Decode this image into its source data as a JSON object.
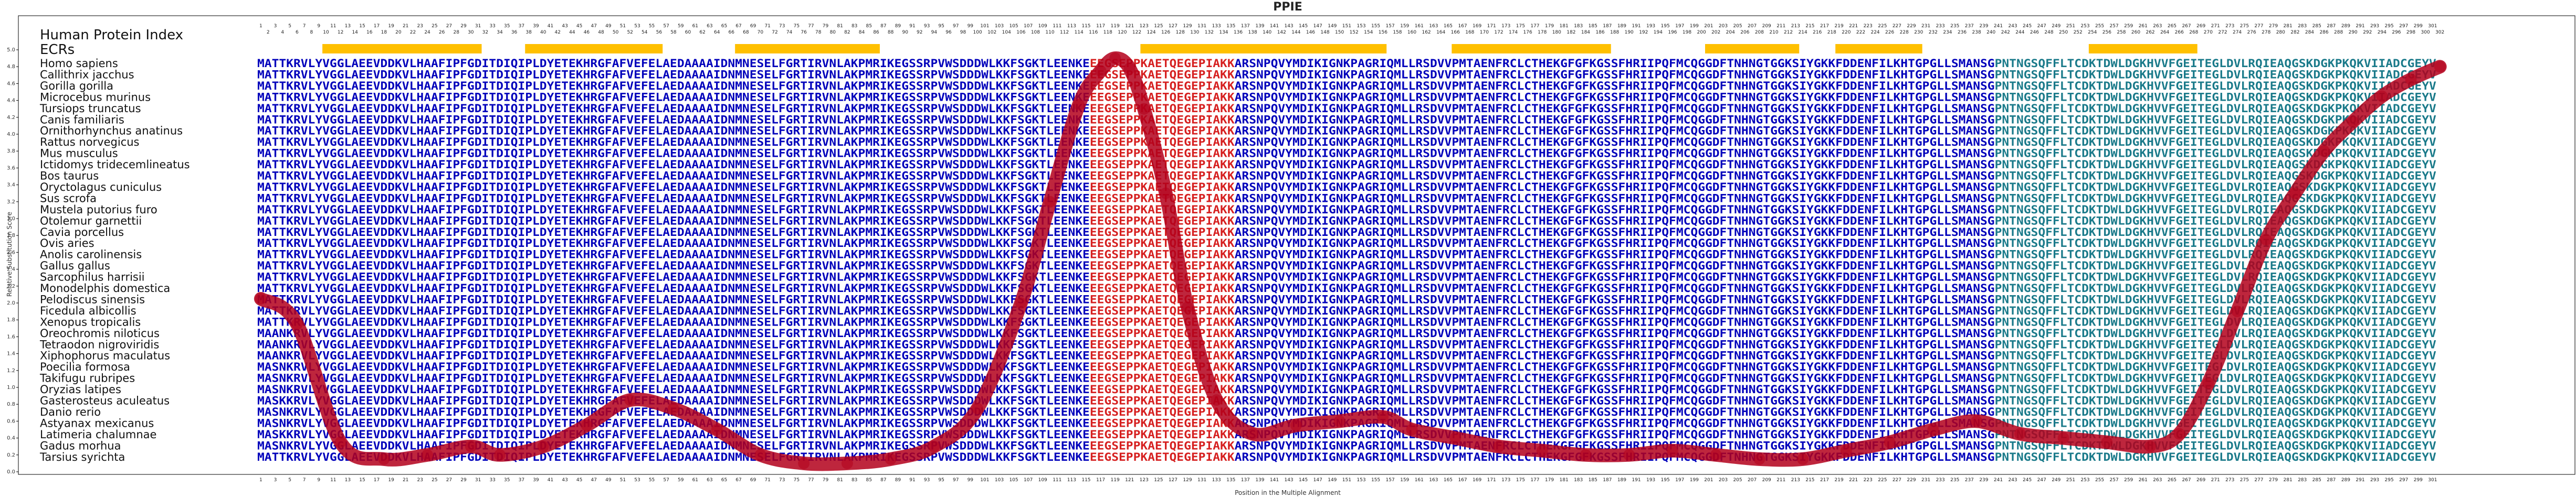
{
  "chart_data": {
    "type": "line",
    "title": "PPIE",
    "xlabel": "Position in the Multiple Alignment",
    "ylabel": "Relative Substitution Score",
    "xlim": [
      1,
      302
    ],
    "ylim": [
      0,
      5
    ],
    "yticks": [
      "0.0",
      "0.2",
      "0.4",
      "0.6",
      "0.8",
      "1.0",
      "1.2",
      "1.4",
      "1.6",
      "1.8",
      "2.0",
      "2.2",
      "2.4",
      "2.6",
      "2.8",
      "3.0",
      "3.2",
      "3.4",
      "3.6",
      "3.8",
      "4.0",
      "4.2",
      "4.4",
      "4.6",
      "4.8",
      "5.0"
    ],
    "grid": false,
    "series": [
      {
        "x": [
          1,
          6,
          12,
          18,
          24,
          30,
          34,
          40,
          46,
          52,
          58,
          64,
          70,
          76,
          82,
          88,
          94,
          100,
          106,
          110,
          114,
          117,
          119,
          121,
          123,
          126,
          129,
          133,
          138,
          144,
          150,
          156,
          160,
          166,
          172,
          178,
          184,
          190,
          196,
          202,
          208,
          214,
          220,
          226,
          232,
          238,
          244,
          250,
          256,
          262,
          266,
          270,
          274,
          278,
          282,
          286,
          290,
          294,
          298,
          302
        ],
        "values": [
          2.05,
          1.75,
          0.35,
          0.15,
          0.2,
          0.3,
          0.2,
          0.3,
          0.55,
          0.85,
          0.75,
          0.5,
          0.2,
          0.1,
          0.1,
          0.15,
          0.3,
          0.75,
          2.0,
          3.2,
          4.35,
          4.75,
          4.9,
          4.78,
          4.3,
          3.3,
          1.95,
          0.85,
          0.45,
          0.55,
          0.6,
          0.65,
          0.5,
          0.4,
          0.3,
          0.25,
          0.2,
          0.2,
          0.25,
          0.2,
          0.15,
          0.15,
          0.25,
          0.35,
          0.5,
          0.6,
          0.45,
          0.4,
          0.35,
          0.3,
          0.45,
          1.05,
          1.9,
          2.75,
          3.3,
          3.8,
          4.15,
          4.45,
          4.65,
          4.8
        ]
      }
    ]
  },
  "header": {
    "left_label": "Human Protein Index",
    "ecr_label": "ECRs",
    "ecr_segments": [
      [
        10,
        31
      ],
      [
        38,
        56
      ],
      [
        67,
        86
      ],
      [
        123,
        156
      ],
      [
        166,
        187
      ],
      [
        201,
        213
      ],
      [
        219,
        230
      ],
      [
        254,
        268
      ]
    ]
  },
  "species": [
    "Homo sapiens",
    "Callithrix jacchus",
    "Gorilla gorilla",
    "Microcebus murinus",
    "Tursiops truncatus",
    "Canis familiaris",
    "Ornithorhynchus anatinus",
    "Rattus norvegicus",
    "Mus musculus",
    "Ictidomys tridecemlineatus",
    "Bos taurus",
    "Oryctolagus cuniculus",
    "Sus scrofa",
    "Mustela putorius furo",
    "Otolemur garnettii",
    "Cavia porcellus",
    "Ovis aries",
    "Anolis carolinensis",
    "Gallus gallus",
    "Sarcophilus harrisii",
    "Monodelphis domestica",
    "Pelodiscus sinensis",
    "Ficedula albicollis",
    "Xenopus tropicalis",
    "Oreochromis niloticus",
    "Tetraodon nigroviridis",
    "Xiphophorus maculatus",
    "Poecilia formosa",
    "Takifugu rubripes",
    "Oryzias latipes",
    "Gasterosteus aculeatus",
    "Danio rerio",
    "Astyanax mexicanus",
    "Latimeria chalumnae",
    "Gadus morhua",
    "Tarsius syrichta"
  ],
  "sequences": [
    "MATTKRVLYVGGLAEEVDDKVLHAAFIPFGDITDIQIPLDYETEKHRGFAFVEFELAEDAAAAIDNMNESELFGRTIRVNLAKPMRIKEGSSRPVWSDDDWLKKFSGKTLEENKEEEGSEPPKAETQEGEPIAKKARSNPQVYMDIKIGNKPAGRIQMLLRSDVVPMTAENFRCLCTHEKGFGFKGSSFHRIIPQFMCQGGDFTNHNGTGGKSIYGKKFDDENFILKHTGPGLLSMANSGPNTNGSQFFLTCDKTDWLDGKHVVFGEITEGLDVLRQIEAQGSKDGKPKQKVIIADCGEYV",
    "MATTKRVLYVGGLAEEVDDKVLHAAFIPFGDITDIQIPLDYETEKHRGFAFVEFELAEDAAAAIDNMNESELFGRTIRVNLAKPMRIKEGSSRPVWSDDDWLKKFSGKTLEENKEEEGSEPPKAETQEGEPIAKKARSNPQVYMDIKIGNKPAGRIQMLLRSDVVPMTAENFRCLCTHEKGFGFKGSSFHRIIPQFMCQGGDFTNHNGTGGKSIYGKKFDDENFILKHTGPGLLSMANSGPNTNGSQFFLTCDKTDWLDGKHVVFGEITEGLDVLRQIEAQGSKDGKPKQKVIIADCGEYV",
    "MATTKRVLYVGGLAEEVDDKVLHAAFIPFGDITDIQIPLDYETEKHRGFAFVEFELAEDAAAAIDNMNESELFGRTIRVNLAKPMRIKEGSSRPVWSDDDWLKKFSGKTLEENKEEEGSEPPKAETQEGEPIAKKARSNPQVYMDIKIGNKPAGRIQMLLRSDVVPMTAENFRCLCTHEKGFGFKGSSFHRIIPQFMCQGGDFTNHNGTGGKSIYGKKFDDENFILKHTGPGLLSMANSGPNTNGSQFFLTCDKTDWLDGKHVVFGEITEGLDVLRQIEAQGSKDGKPKQKVIIADCGEYV",
    "MATTKRVLYVGGLAEEVDDKVLHAAFIPFGDITDIQIPLDYETEKHRGFAFVEFELAEDAAAAIDNMNESELFGRTIRVNLAKPMRIKEGSSRPVWSDDDWLKKFSGKTLEENKEEEGSEPPKAETQEGEPIAKKARSNPQVYMDIKIGNKPAGRIQMLLRSDVVPMTAENFRCLCTHEKGFGFKGSSFHRIIPQFMCQGGDFTNHNGTGGKSIYGKKFDDENFILKHTGPGLLSMANSGPNTNGSQFFLTCDKTDWLDGKHVVFGEITEGLDVLRQIEAQGSKDGKPKQKVIIADCGEYV",
    "MATTKRVLYVGGLAEEVDDKVLHAAFIPFGDITDIQIPLDYETEKHRGFAFVEFELAEDAAAAIDNMNESELFGRTIRVNLAKPMRIKEGSSRPVWSDDDWLKKFSGKTLEENKEEEGSEPPKAETQEGEPIAKKARSNPQVYMDIKIGNKPAGRIQMLLRSDVVPMTAENFRCLCTHEKGFGFKGSSFHRIIPQFMCQGGDFTNHNGTGGKSIYGKKFDDENFILKHTGPGLLSMANSGPNTNGSQFFLTCDKTDWLDGKHVVFGEITEGLDVLRQIEAQGSKDGKPKQKVIIADCGEYV",
    "MATTKRVLYVGGLAEEVDDKVLHAAFIPFGDITDIQIPLDYETEKHRGFAFVEFELAEDAAAAIDNMNESELFGRTIRVNLAKPMRIKEGSSRPVWSDDDWLKKFSGKTLEENKEEEGSEPPKAETQEGEPIAKKARSNPQVYMDIKIGNKPAGRIQMLLRSDVVPMTAENFRCLCTHEKGFGFKGSSFHRIIPQFMCQGGDFTNHNGTGGKSIYGKKFDDENFILKHTGPGLLSMANSGPNTNGSQFFLTCDKTDWLDGKHVVFGEITEGLDVLRQIEAQGSKDGKPKQKVIIADCGEYV",
    "MATTKRVLYVGGLAEEVDDKVLHAAFIPFGDITDIQIPLDYETEKHRGFAFVEFELAEDAAAAIDNMNESELFGRTIRVNLAKPMRIKEGSSRPVWSDDDWLKKFSGKTLEENKEEEGSEPPKAETQEGEPIAKKARSNPQVYMDIKIGNKPAGRIQMLLRSDVVPMTAENFRCLCTHEKGFGFKGSSFHRIIPQFMCQGGDFTNHNGTGGKSIYGKKFDDENFILKHTGPGLLSMANSGPNTNGSQFFLTCDKTDWLDGKHVVFGEITEGLDVLRQIEAQGSKDGKPKQKVIIADCGEYV",
    "MATTKRVLYVGGLAEEVDDKVLHAAFIPFGDITDIQIPLDYETEKHRGFAFVEFELAEDAAAAIDNMNESELFGRTIRVNLAKPMRIKEGSSRPVWSDDDWLKKFSGKTLEENKEEEGSEPPKAETQEGEPIAKKARSNPQVYMDIKIGNKPAGRIQMLLRSDVVPMTAENFRCLCTHEKGFGFKGSSFHRIIPQFMCQGGDFTNHNGTGGKSIYGKKFDDENFILKHTGPGLLSMANSGPNTNGSQFFLTCDKTDWLDGKHVVFGEITEGLDVLRQIEAQGSKDGKPKQKVIIADCGEYV",
    "MATTKRVLYVGGLAEEVDDKVLHAAFIPFGDITDIQIPLDYETEKHRGFAFVEFELAEDAAAAIDNMNESELFGRTIRVNLAKPMRIKEGSSRPVWSDDDWLKKFSGKTLEENKEEEGSEPPKAETQEGEPIAKKARSNPQVYMDIKIGNKPAGRIQMLLRSDVVPMTAENFRCLCTHEKGFGFKGSSFHRIIPQFMCQGGDFTNHNGTGGKSIYGKKFDDENFILKHTGPGLLSMANSGPNTNGSQFFLTCDKTDWLDGKHVVFGEITEGLDVLRQIEAQGSKDGKPKQKVIIADCGEYV",
    "MATTKRVLYVGGLAEEVDDKVLHAAFIPFGDITDIQIPLDYETEKHRGFAFVEFELAEDAAAAIDNMNESELFGRTIRVNLAKPMRIKEGSSRPVWSDDDWLKKFSGKTLEENKEEEGSEPPKAETQEGEPIAKKARSNPQVYMDIKIGNKPAGRIQMLLRSDVVPMTAENFRCLCTHEKGFGFKGSSFHRIIPQFMCQGGDFTNHNGTGGKSIYGKKFDDENFILKHTGPGLLSMANSGPNTNGSQFFLTCDKTDWLDGKHVVFGEITEGLDVLRQIEAQGSKDGKPKQKVIIADCGEYV",
    "MATTKRVLYVGGLAEEVDDKVLHAAFIPFGDITDIQIPLDYETEKHRGFAFVEFELAEDAAAAIDNMNESELFGRTIRVNLAKPMRIKEGSSRPVWSDDDWLKKFSGKTLEENKEEEGSEPPKAETQEGEPIAKKARSNPQVYMDIKIGNKPAGRIQMLLRSDVVPMTAENFRCLCTHEKGFGFKGSSFHRIIPQFMCQGGDFTNHNGTGGKSIYGKKFDDENFILKHTGPGLLSMANSGPNTNGSQFFLTCDKTDWLDGKHVVFGEITEGLDVLRQIEAQGSKDGKPKQKVIIADCGEYV",
    "MATTKRVLYVGGLAEEVDDKVLHAAFIPFGDITDIQIPLDYETEKHRGFAFVEFELAEDAAAAIDNMNESELFGRTIRVNLAKPMRIKEGSSRPVWSDDDWLKKFSGKTLEENKEEEGSEPPKAETQEGEPIAKKARSNPQVYMDIKIGNKPAGRIQMLLRSDVVPMTAENFRCLCTHEKGFGFKGSSFHRIIPQFMCQGGDFTNHNGTGGKSIYGKKFDDENFILKHTGPGLLSMANSGPNTNGSQFFLTCDKTDWLDGKHVVFGEITEGLDVLRQIEAQGSKDGKPKQKVIIADCGEYV",
    "MATTKRVLYVGGLAEEVDDKVLHAAFIPFGDITDIQIPLDYETEKHRGFAFVEFELAEDAAAAIDNMNESELFGRTIRVNLAKPMRIKEGSSRPVWSDDDWLKKFSGKTLEENKEEEGSEPPKAETQEGEPIAKKARSNPQVYMDIKIGNKPAGRIQMLLRSDVVPMTAENFRCLCTHEKGFGFKGSSFHRIIPQFMCQGGDFTNHNGTGGKSIYGKKFDDENFILKHTGPGLLSMANSGPNTNGSQFFLTCDKTDWLDGKHVVFGEITEGLDVLRQIEAQGSKDGKPKQKVIIADCGEYV",
    "MATTKRVLYVGGLAEEVDDKVLHAAFIPFGDITDIQIPLDYETEKHRGFAFVEFELAEDAAAAIDNMNESELFGRTIRVNLAKPMRIKEGSSRPVWSDDDWLKKFSGKTLEENKEEEGSEPPKAETQEGEPIAKKARSNPQVYMDIKIGNKPAGRIQMLLRSDVVPMTAENFRCLCTHEKGFGFKGSSFHRIIPQFMCQGGDFTNHNGTGGKSIYGKKFDDENFILKHTGPGLLSMANSGPNTNGSQFFLTCDKTDWLDGKHVVFGEITEGLDVLRQIEAQGSKDGKPKQKVIIADCGEYV",
    "MATTKRVLYVGGLAEEVDDKVLHAAFIPFGDITDIQIPLDYETEKHRGFAFVEFELAEDAAAAIDNMNESELFGRTIRVNLAKPMRIKEGSSRPVWSDDDWLKKFSGKTLEENKEEEGSEPPKAETQEGEPIAKKARSNPQVYMDIKIGNKPAGRIQMLLRSDVVPMTAENFRCLCTHEKGFGFKGSSFHRIIPQFMCQGGDFTNHNGTGGKSIYGKKFDDENFILKHTGPGLLSMANSGPNTNGSQFFLTCDKTDWLDGKHVVFGEITEGLDVLRQIEAQGSKDGKPKQKVIIADCGEYV",
    "MATTKRVLYVGGLAEEVDDKVLHAAFIPFGDITDIQIPLDYETEKHRGFAFVEFELAEDAAAAIDNMNESELFGRTIRVNLAKPMRIKEGSSRPVWSDDDWLKKFSGKTLEENKEEEGSEPPKAETQEGEPIAKKARSNPQVYMDIKIGNKPAGRIQMLLRSDVVPMTAENFRCLCTHEKGFGFKGSSFHRIIPQFMCQGGDFTNHNGTGGKSIYGKKFDDENFILKHTGPGLLSMANSGPNTNGSQFFLTCDKTDWLDGKHVVFGEITEGLDVLRQIEAQGSKDGKPKQKVIIADCGEYV",
    "MATTKRVLYVGGLAEEVDDKVLHAAFIPFGDITDIQIPLDYETEKHRGFAFVEFELAEDAAAAIDNMNESELFGRTIRVNLAKPMRIKEGSSRPVWSDDDWLKKFSGKTLEENKEEEGSEPPKAETQEGEPIAKKARSNPQVYMDIKIGNKPAGRIQMLLRSDVVPMTAENFRCLCTHEKGFGFKGSSFHRIIPQFMCQGGDFTNHNGTGGKSIYGKKFDDENFILKHTGPGLLSMANSGPNTNGSQFFLTCDKTDWLDGKHVVFGEITEGLDVLRQIEAQGSKDGKPKQKVIIADCGEYV",
    "MATTKRVLYVGGLAEEVDDKVLHAAFIPFGDITDIQIPLDYETEKHRGFAFVEFELAEDAAAAIDNMNESELFGRTIRVNLAKPMRIKEGSSRPVWSDDDWLKKFSGKTLEENKEEEGSEPPKAETQEGEPIAKKARSNPQVYMDIKIGNKPAGRIQMLLRSDVVPMTAENFRCLCTHEKGFGFKGSSFHRIIPQFMCQGGDFTNHNGTGGKSIYGKKFDDENFILKHTGPGLLSMANSGPNTNGSQFFLTCDKTDWLDGKHVVFGEITEGLDVLRQIEAQGSKDGKPKQKVIIADCGEYV",
    "MATTKRVLYVGGLAEEVDDKVLHAAFIPFGDITDIQIPLDYETEKHRGFAFVEFELAEDAAAAIDNMNESELFGRTIRVNLAKPMRIKEGSSRPVWSDDDWLKKFSGKTLEENKEEEGSEPPKAETQEGEPIAKKARSNPQVYMDIKIGNKPAGRIQMLLRSDVVPMTAENFRCLCTHEKGFGFKGSSFHRIIPQFMCQGGDFTNHNGTGGKSIYGKKFDDENFILKHTGPGLLSMANSGPNTNGSQFFLTCDKTDWLDGKHVVFGEITEGLDVLRQIEAQGSKDGKPKQKVIIADCGEYV",
    "MATTKRVLYVGGLAEEVDDKVLHAAFIPFGDITDIQIPLDYETEKHRGFAFVEFELAEDAAAAIDNMNESELFGRTIRVNLAKPMRIKEGSSRPVWSDDDWLKKFSGKTLEENKEEEGSEPPKAETQEGEPIAKKARSNPQVYMDIKIGNKPAGRIQMLLRSDVVPMTAENFRCLCTHEKGFGFKGSSFHRIIPQFMCQGGDFTNHNGTGGKSIYGKKFDDENFILKHTGPGLLSMANSGPNTNGSQFFLTCDKTDWLDGKHVVFGEITEGLDVLRQIEAQGSKDGKPKQKVIIADCGEYV",
    "MATTKRVLYVGGLAEEVDDKVLHAAFIPFGDITDIQIPLDYETEKHRGFAFVEFELAEDAAAAIDNMNESELFGRTIRVNLAKPMRIKEGSSRPVWSDDDWLKKFSGKTLEENKEEEGSEPPKAETQEGEPIAKKARSNPQVYMDIKIGNKPAGRIQMLLRSDVVPMTAENFRCLCTHEKGFGFKGSSFHRIIPQFMCQGGDFTNHNGTGGKSIYGKKFDDENFILKHTGPGLLSMANSGPNTNGSQFFLTCDKTDWLDGKHVVFGEITEGLDVLRQIEAQGSKDGKPKQKVIIADCGEYV",
    "MATTKRVLYVGGLAEEVDDKVLHAAFIPFGDITDIQIPLDYETEKHRGFAFVEFELAEDAAAAIDNMNESELFGRTIRVNLAKPMRIKEGSSRPVWSDDDWLKKFSGKTLEENKEEEGSEPPKAETQEGEPIAKKARSNPQVYMDIKIGNKPAGRIQMLLRSDVVPMTAENFRCLCTHEKGFGFKGSSFHRIIPQFMCQGGDFTNHNGTGGKSIYGKKFDDENFILKHTGPGLLSMANSGPNTNGSQFFLTCDKTDWLDGKHVVFGEITEGLDVLRQIEAQGSKDGKPKQKVIIADCGEYV",
    "MATTKRVLYVGGLAEEVDDKVLHAAFIPFGDITDIQIPLDYETEKHRGFAFVEFELAEDAAAAIDNMNESELFGRTIRVNLAKPMRIKEGSSRPVWSDDDWLKKFSGKTLEENKEEEGSEPPKAETQEGEPIAKKARSNPQVYMDIKIGNKPAGRIQMLLRSDVVPMTAENFRCLCTHEKGFGFKGSSFHRIIPQFMCQGGDFTNHNGTGGKSIYGKKFDDENFILKHTGPGLLSMANSGPNTNGSQFFLTCDKTDWLDGKHVVFGEITEGLDVLRQIEAQGSKDGKPKQKVIIADCGEYV",
    "MATTKRVLYVGGLAEEVDDKVLHAAFIPFGDITDIQIPLDYETEKHRGFAFVEFELAEDAAAAIDNMNESELFGRTIRVNLAKPMRIKEGSSRPVWSDDDWLKKFSGKTLEENKEEEGSEPPKAETQEGEPIAKKARSNPQVYMDIKIGNKPAGRIQMLLRSDVVPMTAENFRCLCTHEKGFGFKGSSFHRIIPQFMCQGGDFTNHNGTGGKSIYGKKFDDENFILKHTGPGLLSMANSGPNTNGSQFFLTCDKTDWLDGKHVVFGEITEGLDVLRQIEAQGSKDGKPKQKVIIADCGEYV",
    "MAANKRVLYVGGLAEEVDDKVLHAAFIPFGDITDIQIPLDYETEKHRGFAFVEFELAEDAAAAIDNMNESELFGRTIRVNLAKPMRIKEGSSRPVWSDDDWLKKFSGKTLEENKEEEGSEPPKAETQEGEPIAKKARSNPQVYMDIKIGNKPAGRIQMLLRSDVVPMTAENFRCLCTHEKGFGFKGSSFHRIIPQFMCQGGDFTNHNGTGGKSIYGKKFDDENFILKHTGPGLLSMANSGPNTNGSQFFLTCDKTDWLDGKHVVFGEITEGLDVLRQIEAQGSKDGKPKQKVIIADCGEYV",
    "MAANKRVLYVGGLAEEVDDKVLHAAFIPFGDITDIQIPLDYETEKHRGFAFVEFELAEDAAAAIDNMNESELFGRTIRVNLAKPMRIKEGSSRPVWSDDDWLKKFSGKTLEENKEEEGSEPPKAETQEGEPIAKKARSNPQVYMDIKIGNKPAGRIQMLLRSDVVPMTAENFRCLCTHEKGFGFKGSSFHRIIPQFMCQGGDFTNHNGTGGKSIYGKKFDDENFILKHTGPGLLSMANSGPNTNGSQFFLTCDKTDWLDGKHVVFGEITEGLDVLRQIEAQGSKDGKPKQKVIIADCGEYV",
    "MAANKRVLYVGGLAEEVDDKVLHAAFIPFGDITDIQIPLDYETEKHRGFAFVEFELAEDAAAAIDNMNESELFGRTIRVNLAKPMRIKEGSSRPVWSDDDWLKKFSGKTLEENKEEEGSEPPKAETQEGEPIAKKARSNPQVYMDIKIGNKPAGRIQMLLRSDVVPMTAENFRCLCTHEKGFGFKGSSFHRIIPQFMCQGGDFTNHNGTGGKSIYGKKFDDENFILKHTGPGLLSMANSGPNTNGSQFFLTCDKTDWLDGKHVVFGEITEGLDVLRQIEAQGSKDGKPKQKVIIADCGEYV",
    "MASNKRVLYVGGLAEEVDDKVLHAAFIPFGDITDIQIPLDYETEKHRGFAFVEFELAEDAAAAIDNMNESELFGRTIRVNLAKPMRIKEGSSRPVWSDDDWLKKFSGKTLEENKEEEGSEPPKAETQEGEPIAKKARSNPQVYMDIKIGNKPAGRIQMLLRSDVVPMTAENFRCLCTHEKGFGFKGSSFHRIIPQFMCQGGDFTNHNGTGGKSIYGKKFDDENFILKHTGPGLLSMANSGPNTNGSQFFLTCDKTDWLDGKHVVFGEITEGLDVLRQIEAQGSKDGKPKQKVIIADCGEYV",
    "MASNKRVLYVGGLAEEVDDKVLHAAFIPFGDITDIQIPLDYETEKHRGFAFVEFELAEDAAAAIDNMNESELFGRTIRVNLAKPMRIKEGSSRPVWSDDDWLKKFSGKTLEENKEEEGSEPPKAETQEGEPIAKKARSNPQVYMDIKIGNKPAGRIQMLLRSDVVPMTAENFRCLCTHEKGFGFKGSSFHRIIPQFMCQGGDFTNHNGTGGKSIYGKKFDDENFILKHTGPGLLSMANSGPNTNGSQFFLTCDKTDWLDGKHVVFGEITEGLDVLRQIEAQGSKDGKPKQKVIIADCGEYV",
    "MASNKRVLYVGGLAEEVDDKVLHAAFIPFGDITDIQIPLDYETEKHRGFAFVEFELAEDAAAAIDNMNESELFGRTIRVNLAKPMRIKEGSSRPVWSDDDWLKKFSGKTLEENKEEEGSEPPKAETQEGEPIAKKARSNPQVYMDIKIGNKPAGRIQMLLRSDVVPMTAENFRCLCTHEKGFGFKGSSFHRIIPQFMCQGGDFTNHNGTGGKSIYGKKFDDENFILKHTGPGLLSMANSGPNTNGSQFFLTCDKTDWLDGKHVVFGEITEGLDVLRQIEAQGSKDGKPKQKVIIADCGEYV",
    "MASKKRVLYVGGLAEEVDDKVLHAAFIPFGDITDIQIPLDYETEKHRGFAFVEFELAEDAAAAIDNMNESELFGRTIRVNLAKPMRIKEGSSRPVWSDDDWLKKFSGKTLEENKEEEGSEPPKAETQEGEPIAKKARSNPQVYMDIKIGNKPAGRIQMLLRSDVVPMTAENFRCLCTHEKGFGFKGSSFHRIIPQFMCQGGDFTNHNGTGGKSIYGKKFDDENFILKHTGPGLLSMANSGPNTNGSQFFLTCDKTDWLDGKHVVFGEITEGLDVLRQIEAQGSKDGKPKQKVIIADCGEYV",
    "MASNKRVLYVGGLAEEVDDKVLHAAFIPFGDITDIQIPLDYETEKHRGFAFVEFELAEDAAAAIDNMNESELFGRTIRVNLAKPMRIKEGSSRPVWSDDDWLKKFSGKTLEENKEEEGSEPPKAETQEGEPIAKKARSNPQVYMDIKIGNKPAGRIQMLLRSDVVPMTAENFRCLCTHEKGFGFKGSSFHRIIPQFMCQGGDFTNHNGTGGKSIYGKKFDDENFILKHTGPGLLSMANSGPNTNGSQFFLTCDKTDWLDGKHVVFGEITEGLDVLRQIEAQGSKDGKPKQKVIIADCGEYV",
    "MASNKRVLYVGGLAEEVDDKVLHAAFIPFGDITDIQIPLDYETEKHRGFAFVEFELAEDAAAAIDNMNESELFGRTIRVNLAKPMRIKEGSSRPVWSDDDWLKKFSGKTLEENKEEEGSEPPKAETQEGEPIAKKARSNPQVYMDIKIGNKPAGRIQMLLRSDVVPMTAENFRCLCTHEKGFGFKGSSFHRIIPQFMCQGGDFTNHNGTGGKSIYGKKFDDENFILKHTGPGLLSMANSGPNTNGSQFFLTCDKTDWLDGKHVVFGEITEGLDVLRQIEAQGSKDGKPKQKVIIADCGEYV",
    "MASKKRVLYVGGLAEEVDDKVLHAAFIPFGDITDIQIPLDYETEKHRGFAFVEFELAEDAAAAIDNMNESELFGRTIRVNLAKPMRIKEGSSRPVWSDDDWLKKFSGKTLEENKEEEGSEPPKAETQEGEPIAKKARSNPQVYMDIKIGNKPAGRIQMLLRSDVVPMTAENFRCLCTHEKGFGFKGSSFHRIIPQFMCQGGDFTNHNGTGGKSIYGKKFDDENFILKHTGPGLLSMANSGPNTNGSQFFLTCDKTDWLDGKHVVFGEITEGLDVLRQIEAQGSKDGKPKQKVIIADCGEYV",
    "MASNKRVLYVGGLAEEVDDKVLHAAFIPFGDITDIQIPLDYETEKHRGFAFVEFELAEDAAAAIDNMNESELFGRTIRVNLAKPMRIKEGSSRPVWSDDDWLKKFSGKTLEENKEEEGSEPPKAETQEGEPIAKKARSNPQVYMDIKIGNKPAGRIQMLLRSDVVPMTAENFRCLCTHEKGFGFKGSSFHRIIPQFMCQGGDFTNHNGTGGKSIYGKKFDDENFILKHTGPGLLSMANSGPNTNGSQFFLTCDKTDWLDGKHVVFGEITEGLDVLRQIEAQGSKDGKPKQKVIIADCGEYV",
    "MATTKRVLYVGGLAEEVDDKVLHAAFIPFGDITDIQIPLDYETEKHRGFAFVEFELAEDAAAAIDNMNESELFGRTIRVNLAKPMRIKEGSSRPVWSDDDWLKKFSGKTLEENKEEEGSEPPKAETQEGEPIAKKARSNPQVYMDIKIGNKPAGRIQMLLRSDVVPMTAENFRCLCTHEKGFGFKGSSFHRIIPQFMCQGGDFTNHNGTGGKSIYGKKFDDENFILKHTGPGLLSMANSGPNTNGSQFFLTCDKTDWLDGKHVVFGEITEGLDVLRQIEAQGSKDGKPKQKVIIADCGEYV"
  ],
  "colors": {
    "line": "#b3001b",
    "ecr": "#ffc000",
    "seq_blue": "#0000bb",
    "seq_teal": "#1a7a8a",
    "seq_gray": "#7777aa",
    "seq_red": "#d62020"
  }
}
